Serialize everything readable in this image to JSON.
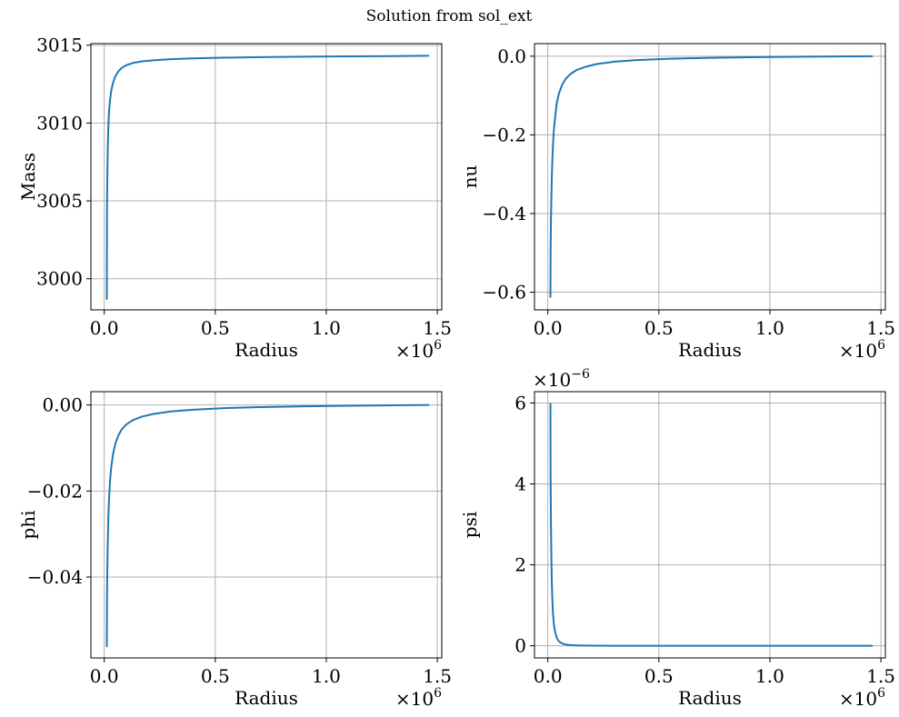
{
  "figure": {
    "suptitle": "Solution from sol_ext"
  },
  "chart_data": [
    {
      "type": "line",
      "title": "",
      "xlabel": "Radius",
      "ylabel": "Mass",
      "x_offset_text": "×10^6",
      "y_offset_text": "",
      "xlim": [
        -0.06,
        1.52
      ],
      "ylim": [
        2998.0,
        3015.1
      ],
      "x_ticks": [
        0.0,
        0.5,
        1.0,
        1.5
      ],
      "x_tick_labels": [
        "0.0",
        "0.5",
        "1.0",
        "1.5"
      ],
      "y_ticks": [
        3000,
        3005,
        3010,
        3015
      ],
      "y_tick_labels": [
        "3000",
        "3005",
        "3010",
        "3015"
      ],
      "grid": true,
      "color": "#1f77b4",
      "series": [
        {
          "x": [
            0.0117,
            0.0125,
            0.014,
            0.016,
            0.018,
            0.02,
            0.023,
            0.027,
            0.032,
            0.04,
            0.05,
            0.065,
            0.08,
            0.1,
            0.13,
            0.17,
            0.22,
            0.3,
            0.4,
            0.55,
            0.7,
            0.9,
            1.1,
            1.3,
            1.46
          ],
          "y": [
            2998.7,
            3004.6,
            3006.6,
            3008.4,
            3009.5,
            3010.3,
            3011.0,
            3011.6,
            3012.1,
            3012.6,
            3013.0,
            3013.35,
            3013.55,
            3013.72,
            3013.86,
            3013.96,
            3014.03,
            3014.1,
            3014.15,
            3014.2,
            3014.23,
            3014.26,
            3014.28,
            3014.3,
            3014.32
          ]
        }
      ]
    },
    {
      "type": "line",
      "title": "",
      "xlabel": "Radius",
      "ylabel": "nu",
      "x_offset_text": "×10^6",
      "y_offset_text": "",
      "xlim": [
        -0.06,
        1.52
      ],
      "ylim": [
        -0.645,
        0.032
      ],
      "x_ticks": [
        0.0,
        0.5,
        1.0,
        1.5
      ],
      "x_tick_labels": [
        "0.0",
        "0.5",
        "1.0",
        "1.5"
      ],
      "y_ticks": [
        -0.6,
        -0.4,
        -0.2,
        0.0
      ],
      "y_tick_labels": [
        "−0.6",
        "−0.4",
        "−0.2",
        "0.0"
      ],
      "grid": true,
      "color": "#1f77b4",
      "series": [
        {
          "x": [
            0.0117,
            0.0125,
            0.014,
            0.016,
            0.018,
            0.02,
            0.023,
            0.027,
            0.032,
            0.04,
            0.05,
            0.065,
            0.08,
            0.1,
            0.13,
            0.17,
            0.22,
            0.3,
            0.4,
            0.55,
            0.7,
            0.9,
            1.1,
            1.3,
            1.46
          ],
          "y": [
            -0.612,
            -0.5,
            -0.42,
            -0.36,
            -0.31,
            -0.27,
            -0.23,
            -0.19,
            -0.16,
            -0.12,
            -0.095,
            -0.072,
            -0.058,
            -0.046,
            -0.035,
            -0.027,
            -0.02,
            -0.014,
            -0.01,
            -0.0065,
            -0.0045,
            -0.0028,
            -0.0016,
            -0.0006,
            0.0
          ]
        }
      ]
    },
    {
      "type": "line",
      "title": "",
      "xlabel": "Radius",
      "ylabel": "phi",
      "x_offset_text": "×10^6",
      "y_offset_text": "",
      "xlim": [
        -0.06,
        1.52
      ],
      "ylim": [
        -0.0588,
        0.0031
      ],
      "x_ticks": [
        0.0,
        0.5,
        1.0,
        1.5
      ],
      "x_tick_labels": [
        "0.0",
        "0.5",
        "1.0",
        "1.5"
      ],
      "y_ticks": [
        -0.04,
        -0.02,
        0.0
      ],
      "y_tick_labels": [
        "−0.04",
        "−0.02",
        "0.00"
      ],
      "grid": true,
      "color": "#1f77b4",
      "series": [
        {
          "x": [
            0.0117,
            0.0125,
            0.014,
            0.016,
            0.018,
            0.02,
            0.023,
            0.027,
            0.032,
            0.04,
            0.05,
            0.065,
            0.08,
            0.1,
            0.13,
            0.17,
            0.22,
            0.3,
            0.4,
            0.55,
            0.7,
            0.9,
            1.1,
            1.3,
            1.46
          ],
          "y": [
            -0.0561,
            -0.045,
            -0.038,
            -0.032,
            -0.0275,
            -0.024,
            -0.0205,
            -0.017,
            -0.0143,
            -0.0113,
            -0.009,
            -0.0069,
            -0.0056,
            -0.0045,
            -0.0035,
            -0.0027,
            -0.0021,
            -0.0015,
            -0.0011,
            -0.0007,
            -0.0005,
            -0.0003,
            -0.00018,
            -8e-05,
            0.0
          ]
        }
      ]
    },
    {
      "type": "line",
      "title": "",
      "xlabel": "Radius",
      "ylabel": "psi",
      "x_offset_text": "×10^6",
      "y_offset_text": "×10^−6",
      "xlim": [
        -0.06,
        1.52
      ],
      "ylim": [
        -0.3,
        6.28
      ],
      "x_ticks": [
        0.0,
        0.5,
        1.0,
        1.5
      ],
      "x_tick_labels": [
        "0.0",
        "0.5",
        "1.0",
        "1.5"
      ],
      "y_ticks": [
        0,
        2,
        4,
        6
      ],
      "y_tick_labels": [
        "0",
        "2",
        "4",
        "6"
      ],
      "grid": true,
      "color": "#1f77b4",
      "series": [
        {
          "x": [
            0.0117,
            0.0125,
            0.014,
            0.016,
            0.018,
            0.02,
            0.023,
            0.027,
            0.032,
            0.04,
            0.05,
            0.065,
            0.08,
            0.1,
            0.13,
            0.17,
            0.22,
            0.3,
            0.4,
            0.55,
            0.7,
            0.9,
            1.1,
            1.3,
            1.46
          ],
          "y": [
            5.98,
            4.2,
            3.1,
            2.2,
            1.6,
            1.2,
            0.82,
            0.55,
            0.36,
            0.2,
            0.11,
            0.055,
            0.032,
            0.018,
            0.009,
            0.005,
            0.003,
            0.0015,
            0.0008,
            0.0004,
            0.0002,
            0.0001,
            5e-05,
            3e-05,
            2e-05
          ]
        }
      ]
    }
  ]
}
